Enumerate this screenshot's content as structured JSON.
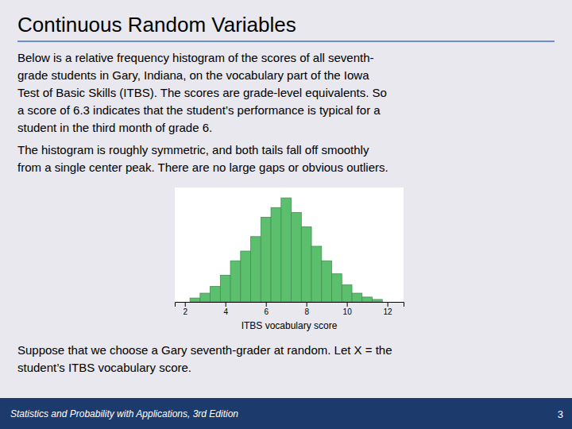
{
  "chart_data": {
    "type": "histogram",
    "title": "Continuous Random Variables",
    "annotations": [
      "Below is a relative frequency histogram of the scores of all seventh-",
      "grade students in Gary, Indiana, on the vocabulary part of the Iowa",
      "Test of Basic Skills (ITBS). The scores are grade-level equivalents. So",
      "a score of 6.3 indicates that the student’s performance is typical for a",
      "student in the third month of grade 6.",
      "The histogram is roughly symmetric, and both tails fall off smoothly",
      "from a single center peak. There are no large gaps or obvious outliers.",
      "Suppose that we choose a Gary seventh-grader at random. Let X = the",
      "student’s ITBS vocabulary score.",
      "Statistics and Probability with Applications, 3rd Edition",
      "3"
    ],
    "xlabel": "ITBS vocabulary score",
    "bins": [
      2.25,
      2.75,
      3.25,
      3.75,
      4.25,
      4.75,
      5.25,
      5.75,
      6.25,
      6.75,
      7.25,
      7.75,
      8.25,
      8.75,
      9.25,
      9.75,
      10.25,
      10.75,
      11.25,
      11.75
    ],
    "values": [
      0.008,
      0.018,
      0.032,
      0.055,
      0.085,
      0.105,
      0.135,
      0.175,
      0.195,
      0.215,
      0.185,
      0.155,
      0.115,
      0.085,
      0.058,
      0.035,
      0.018,
      0.01,
      0.005
    ],
    "color": "#5BBF6E",
    "xlim": [
      1.5,
      12.8
    ],
    "xticks": [
      2,
      4,
      6,
      8,
      10,
      12
    ],
    "ylim": [
      0,
      0.2365
    ],
    "tick_labels": "x"
  }
}
